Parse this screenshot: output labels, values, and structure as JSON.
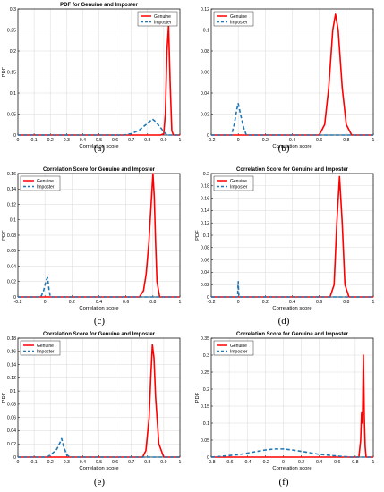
{
  "colors": {
    "genuine": "#ff0000",
    "imposter": "#1f77b4",
    "axis": "#000000",
    "grid": "#d9d9d9"
  },
  "chart_data": [
    {
      "panel": "(a)",
      "type": "line",
      "title": "PDF for Genuine and Imposter",
      "xlabel": "Correlation score",
      "ylabel": "PDF",
      "xlim": [
        0,
        1
      ],
      "ylim": [
        0,
        0.3
      ],
      "xticks": [
        0,
        0.1,
        0.2,
        0.3,
        0.4,
        0.5,
        0.6,
        0.7,
        0.8,
        0.9,
        1
      ],
      "yticks": [
        0,
        0.05,
        0.1,
        0.15,
        0.2,
        0.25,
        0.3
      ],
      "grid": true,
      "legend_position": "top-right",
      "series": [
        {
          "name": "Genuine",
          "style": "solid",
          "color": "#ff0000",
          "x": [
            0,
            0.88,
            0.9,
            0.91,
            0.92,
            0.93,
            0.94,
            0.95,
            0.96,
            1
          ],
          "y": [
            0,
            0,
            0.003,
            0.05,
            0.2,
            0.26,
            0.12,
            0.01,
            0,
            0
          ]
        },
        {
          "name": "Imposter",
          "style": "dashed",
          "color": "#1f77b4",
          "x": [
            0,
            0.65,
            0.7,
            0.75,
            0.8,
            0.83,
            0.85,
            0.88,
            0.9,
            0.92,
            1
          ],
          "y": [
            0,
            0,
            0.003,
            0.012,
            0.028,
            0.038,
            0.032,
            0.018,
            0.008,
            0,
            0
          ]
        }
      ]
    },
    {
      "panel": "(b)",
      "type": "line",
      "title": "",
      "xlabel": "Correlation score",
      "ylabel": "",
      "xlim": [
        -0.2,
        1
      ],
      "ylim": [
        0,
        0.12
      ],
      "xticks": [
        -0.2,
        0,
        0.2,
        0.4,
        0.6,
        0.8,
        1
      ],
      "yticks": [
        0,
        0.02,
        0.04,
        0.06,
        0.08,
        0.1,
        0.12
      ],
      "grid": true,
      "legend_position": "top-left",
      "series": [
        {
          "name": "Genuine",
          "style": "solid",
          "color": "#ff0000",
          "x": [
            -0.2,
            0.6,
            0.64,
            0.67,
            0.7,
            0.72,
            0.74,
            0.77,
            0.8,
            0.84,
            1
          ],
          "y": [
            0,
            0,
            0.01,
            0.045,
            0.1,
            0.115,
            0.1,
            0.045,
            0.01,
            0,
            0
          ]
        },
        {
          "name": "Imposter",
          "style": "dashed",
          "color": "#1f77b4",
          "x": [
            -0.2,
            -0.05,
            -0.03,
            -0.01,
            0,
            0.02,
            0.04,
            0.06,
            1
          ],
          "y": [
            0,
            0,
            0.01,
            0.025,
            0.03,
            0.018,
            0.007,
            0,
            0
          ]
        }
      ]
    },
    {
      "panel": "(c)",
      "type": "line",
      "title": "Correlation Score for Genuine and Imposter",
      "xlabel": "Correlation score",
      "ylabel": "PDF",
      "xlim": [
        -0.2,
        1
      ],
      "ylim": [
        0,
        0.16
      ],
      "xticks": [
        -0.2,
        0,
        0.2,
        0.4,
        0.6,
        0.8,
        1
      ],
      "yticks": [
        0,
        0.02,
        0.04,
        0.06,
        0.08,
        0.1,
        0.12,
        0.14,
        0.16
      ],
      "grid": true,
      "legend_position": "top-left",
      "series": [
        {
          "name": "Genuine",
          "style": "solid",
          "color": "#ff0000",
          "x": [
            -0.2,
            0.7,
            0.73,
            0.75,
            0.77,
            0.78,
            0.8,
            0.81,
            0.82,
            0.83,
            0.85,
            1
          ],
          "y": [
            0,
            0,
            0.008,
            0.03,
            0.07,
            0.1,
            0.16,
            0.13,
            0.07,
            0.02,
            0,
            0
          ]
        },
        {
          "name": "Imposter",
          "style": "dashed",
          "color": "#1f77b4",
          "x": [
            -0.2,
            -0.03,
            -0.01,
            0,
            0.01,
            0.02,
            0.03,
            0.04,
            1
          ],
          "y": [
            0,
            0,
            0.008,
            0.015,
            0.022,
            0.025,
            0.01,
            0,
            0
          ]
        }
      ]
    },
    {
      "panel": "(d)",
      "type": "line",
      "title": "Correlation Score for Genuine and Imposter",
      "xlabel": "Correlation score",
      "ylabel": "PDF",
      "xlim": [
        -0.2,
        1
      ],
      "ylim": [
        0,
        0.2
      ],
      "xticks": [
        -0.2,
        0,
        0.2,
        0.4,
        0.6,
        0.8,
        1
      ],
      "yticks": [
        0,
        0.02,
        0.04,
        0.06,
        0.08,
        0.1,
        0.12,
        0.14,
        0.16,
        0.18,
        0.2
      ],
      "grid": true,
      "legend_position": "top-left",
      "series": [
        {
          "name": "Genuine",
          "style": "solid",
          "color": "#ff0000",
          "x": [
            -0.2,
            0.68,
            0.71,
            0.73,
            0.75,
            0.77,
            0.79,
            0.82,
            1
          ],
          "y": [
            0,
            0,
            0.02,
            0.12,
            0.195,
            0.12,
            0.02,
            0,
            0
          ]
        },
        {
          "name": "Imposter",
          "style": "dashed",
          "color": "#1f77b4",
          "x": [
            -0.2,
            -0.005,
            0,
            0.002,
            0.005,
            1
          ],
          "y": [
            0,
            0,
            0.025,
            0.012,
            0,
            0
          ]
        }
      ]
    },
    {
      "panel": "(e)",
      "type": "line",
      "title": "Correlation Score for Genuine and Imposter",
      "xlabel": "Correlation score",
      "ylabel": "PDF",
      "xlim": [
        0,
        1
      ],
      "ylim": [
        0,
        0.18
      ],
      "xticks": [
        0,
        0.1,
        0.2,
        0.3,
        0.4,
        0.5,
        0.6,
        0.7,
        0.8,
        0.9,
        1
      ],
      "yticks": [
        0,
        0.02,
        0.04,
        0.06,
        0.08,
        0.1,
        0.12,
        0.14,
        0.16,
        0.18
      ],
      "grid": true,
      "legend_position": "top-left",
      "series": [
        {
          "name": "Genuine",
          "style": "solid",
          "color": "#ff0000",
          "x": [
            0,
            0.77,
            0.79,
            0.81,
            0.82,
            0.83,
            0.84,
            0.85,
            0.87,
            0.9,
            1
          ],
          "y": [
            0,
            0,
            0.01,
            0.06,
            0.12,
            0.17,
            0.15,
            0.09,
            0.02,
            0,
            0
          ]
        },
        {
          "name": "Imposter",
          "style": "dashed",
          "color": "#1f77b4",
          "x": [
            0,
            0.18,
            0.21,
            0.24,
            0.26,
            0.27,
            0.28,
            0.3,
            0.32,
            1
          ],
          "y": [
            0,
            0,
            0.005,
            0.012,
            0.022,
            0.028,
            0.018,
            0.004,
            0,
            0
          ]
        }
      ]
    },
    {
      "panel": "(f)",
      "type": "line",
      "title": "Correlation Score for Genuine and Imposter",
      "xlabel": "Correlation score",
      "ylabel": "PDF",
      "xlim": [
        -0.8,
        1
      ],
      "ylim": [
        0,
        0.35
      ],
      "xticks": [
        -0.8,
        -0.6,
        -0.4,
        -0.2,
        0,
        0.2,
        0.4,
        0.6,
        0.8,
        1
      ],
      "yticks": [
        0,
        0.05,
        0.1,
        0.15,
        0.2,
        0.25,
        0.3,
        0.35
      ],
      "grid": true,
      "legend_position": "top-left",
      "series": [
        {
          "name": "Genuine",
          "style": "solid",
          "color": "#ff0000",
          "x": [
            -0.8,
            0.84,
            0.86,
            0.87,
            0.88,
            0.89,
            0.9,
            0.91,
            0.92,
            1
          ],
          "y": [
            0,
            0,
            0.05,
            0.13,
            0.1,
            0.3,
            0.12,
            0.03,
            0,
            0
          ]
        },
        {
          "name": "Imposter",
          "style": "dashed",
          "color": "#1f77b4",
          "x": [
            -0.8,
            -0.7,
            -0.5,
            -0.35,
            -0.2,
            -0.1,
            0,
            0.1,
            0.25,
            0.4,
            0.6,
            0.75,
            1
          ],
          "y": [
            0,
            0.002,
            0.007,
            0.014,
            0.021,
            0.024,
            0.024,
            0.021,
            0.015,
            0.008,
            0.003,
            0,
            0
          ]
        }
      ]
    }
  ]
}
